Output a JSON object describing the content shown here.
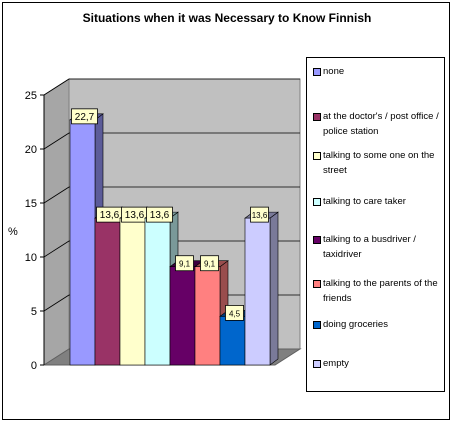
{
  "chart_data": {
    "type": "bar",
    "title": "Situations when it was Necessary to Know Finnish",
    "ylabel": "%",
    "ylim": [
      0,
      25
    ],
    "yticks": [
      "0",
      "5",
      "10",
      "15",
      "20",
      "25"
    ],
    "grid": true,
    "legend_position": "right",
    "series": [
      {
        "name": "none",
        "value": 22.7,
        "label": "22,7",
        "color": "#9999ff"
      },
      {
        "name": "at the doctor's  / post office / police station",
        "value": 13.6,
        "label": "13,6",
        "color": "#993366"
      },
      {
        "name": "talking to some one on the street",
        "value": 13.6,
        "label": "13,6",
        "color": "#ffffcc"
      },
      {
        "name": "talking to care taker",
        "value": 13.6,
        "label": "13,6",
        "color": "#ccffff"
      },
      {
        "name": "talking to a busdriver / taxidriver",
        "value": 9.1,
        "label": "9,1",
        "color": "#660066"
      },
      {
        "name": "talking to the parents of the friends",
        "value": 9.1,
        "label": "9,1",
        "color": "#ff8080"
      },
      {
        "name": "doing groceries",
        "value": 4.5,
        "label": "4,5",
        "color": "#0066cc"
      },
      {
        "name": "empty",
        "value": 13.6,
        "label": "13,6",
        "color": "#ccccff"
      }
    ]
  }
}
